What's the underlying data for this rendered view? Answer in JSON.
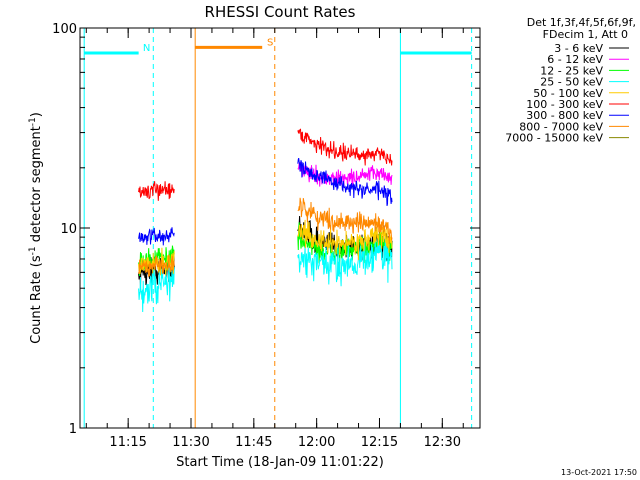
{
  "chart_data": {
    "type": "line",
    "title": "RHESSI Count Rates",
    "xlabel": "Start Time (18-Jan-09 11:01:22)",
    "ylabel": "Count Rate (s",
    "ylabel_sup": "-1",
    "ylabel_mid": " detector segment",
    "ylabel_end": ")",
    "x_unit": "minutes since 11:00",
    "xlim": [
      3.5,
      99
    ],
    "ylim": [
      1,
      100
    ],
    "yscale": "log",
    "xticks": [
      {
        "value": 15,
        "label": "11:15"
      },
      {
        "value": 30,
        "label": "11:30"
      },
      {
        "value": 45,
        "label": "11:45"
      },
      {
        "value": 60,
        "label": "12:00"
      },
      {
        "value": 75,
        "label": "12:15"
      },
      {
        "value": 90,
        "label": "12:30"
      }
    ],
    "yticks": [
      {
        "value": 1,
        "label": "1"
      },
      {
        "value": 10,
        "label": "10"
      },
      {
        "value": 100,
        "label": "100"
      }
    ],
    "legend": {
      "placement": "right",
      "header": [
        "Det 1f,3f,4f,5f,6f,9f,",
        "FDecim 1, Att 0"
      ],
      "entries": [
        {
          "name": "3 - 6 keV",
          "color": "#000000"
        },
        {
          "name": "6 - 12 keV",
          "color": "#ff00ff"
        },
        {
          "name": "12 - 25 keV",
          "color": "#00ff00"
        },
        {
          "name": "25 - 50 keV",
          "color": "#00ffff"
        },
        {
          "name": "50 - 100 keV",
          "color": "#ffcc00"
        },
        {
          "name": "100 - 300 keV",
          "color": "#ff0000"
        },
        {
          "name": "300 - 800 keV",
          "color": "#0000ff"
        },
        {
          "name": "800 - 7000 keV",
          "color": "#ff8800"
        },
        {
          "name": "7000 - 15000 keV",
          "color": "#888800"
        }
      ]
    },
    "segments": [
      {
        "start": 17.5,
        "end": 26
      },
      {
        "start": 55.5,
        "end": 78
      }
    ],
    "series": [
      {
        "name": "3 - 6 keV",
        "color": "#000000",
        "noise": 0.07,
        "points": [
          [
            17.5,
            6.0
          ],
          [
            26,
            6.3
          ],
          [
            55.5,
            10.0
          ],
          [
            62,
            8.2
          ],
          [
            70,
            8.0
          ],
          [
            75,
            8.6
          ],
          [
            78,
            7.5
          ]
        ]
      },
      {
        "name": "6 - 12 keV",
        "color": "#ff00ff",
        "noise": 0.04,
        "points": [
          [
            55.5,
            20.0
          ],
          [
            62,
            17.5
          ],
          [
            70,
            18.0
          ],
          [
            75,
            19.0
          ],
          [
            78,
            17.5
          ]
        ]
      },
      {
        "name": "12 - 25 keV",
        "color": "#00ff00",
        "noise": 0.06,
        "points": [
          [
            17.5,
            6.8
          ],
          [
            26,
            7.2
          ],
          [
            55.5,
            9.0
          ],
          [
            62,
            7.5
          ],
          [
            70,
            7.8
          ],
          [
            75,
            8.6
          ],
          [
            78,
            7.6
          ]
        ]
      },
      {
        "name": "25 - 50 keV",
        "color": "#00ffff",
        "noise": 0.09,
        "points": [
          [
            17.5,
            4.7
          ],
          [
            26,
            5.6
          ],
          [
            55.5,
            7.0
          ],
          [
            62,
            6.4
          ],
          [
            70,
            6.8
          ],
          [
            75,
            7.7
          ],
          [
            78,
            6.6
          ]
        ]
      },
      {
        "name": "50 - 100 keV",
        "color": "#ffcc00",
        "noise": 0.06,
        "points": [
          [
            17.5,
            6.5
          ],
          [
            26,
            6.8
          ],
          [
            55.5,
            9.8
          ],
          [
            62,
            8.3
          ],
          [
            70,
            8.5
          ],
          [
            75,
            9.3
          ],
          [
            78,
            8.6
          ]
        ]
      },
      {
        "name": "100 - 300 keV",
        "color": "#ff0000",
        "noise": 0.04,
        "points": [
          [
            17.5,
            15.0
          ],
          [
            26,
            15.8
          ],
          [
            55.5,
            30.0
          ],
          [
            62,
            25.0
          ],
          [
            70,
            23.0
          ],
          [
            75,
            24.0
          ],
          [
            78,
            21.0
          ]
        ]
      },
      {
        "name": "300 - 800 keV",
        "color": "#0000ff",
        "noise": 0.04,
        "points": [
          [
            17.5,
            9.0
          ],
          [
            26,
            9.2
          ],
          [
            55.5,
            21.0
          ],
          [
            62,
            17.5
          ],
          [
            70,
            15.5
          ],
          [
            75,
            15.5
          ],
          [
            78,
            14.0
          ]
        ]
      },
      {
        "name": "800 - 7000 keV",
        "color": "#ff8800",
        "noise": 0.05,
        "points": [
          [
            17.5,
            6.3
          ],
          [
            26,
            6.6
          ],
          [
            55.5,
            13.0
          ],
          [
            62,
            11.0
          ],
          [
            70,
            10.5
          ],
          [
            75,
            10.5
          ],
          [
            78,
            9.3
          ]
        ]
      }
    ],
    "attenuator_bars": [
      {
        "label": "N",
        "color": "#00ffff",
        "from": 4.5,
        "to": 17.5,
        "y": 75,
        "show_label": true
      },
      {
        "label": "S",
        "color": "#ff8800",
        "from": 31,
        "to": 47,
        "y": 80,
        "show_label": true
      },
      {
        "label": "N",
        "color": "#00ffff",
        "from": 80,
        "to": 97,
        "y": 75,
        "show_label": false
      }
    ],
    "markers": [
      {
        "x": 4.5,
        "color": "#00ffff",
        "style": "solid"
      },
      {
        "x": 21,
        "color": "#00ffff",
        "style": "dashed"
      },
      {
        "x": 31,
        "color": "#ff8800",
        "style": "solid"
      },
      {
        "x": 50,
        "color": "#ff8800",
        "style": "dashed"
      },
      {
        "x": 80,
        "color": "#00ffff",
        "style": "solid"
      },
      {
        "x": 97,
        "color": "#00ffff",
        "style": "dashed"
      }
    ]
  },
  "footer": {
    "timestamp": "13-Oct-2021 17:50"
  }
}
